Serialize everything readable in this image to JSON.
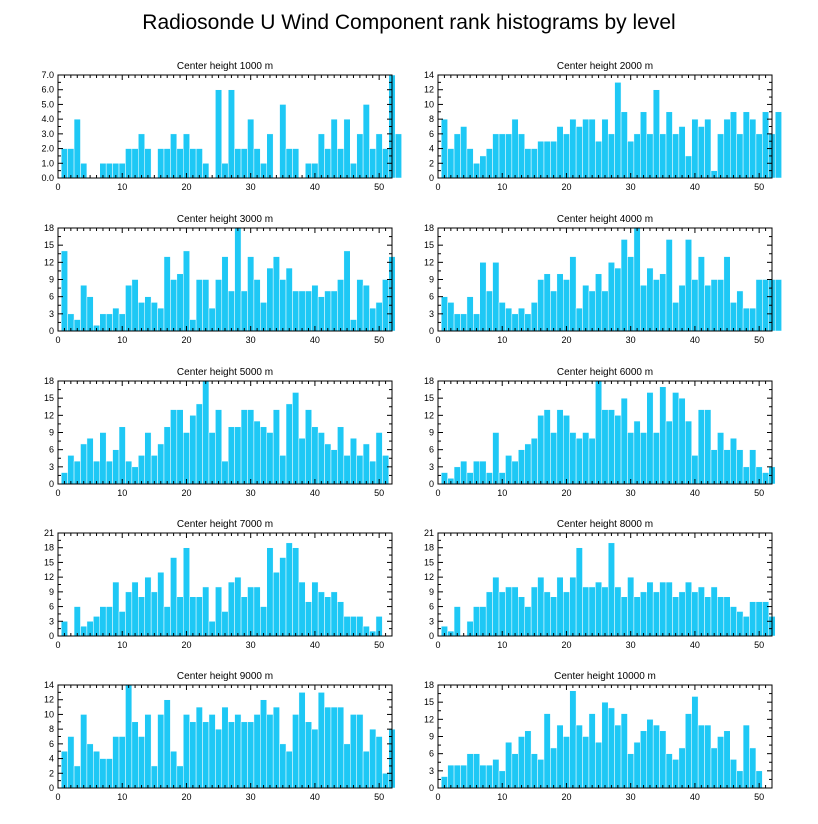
{
  "chart_data": {
    "type": "bar",
    "title": "Radiosonde U Wind Component rank histograms by level",
    "xlim": [
      0,
      52
    ],
    "xticks": [
      0,
      10,
      20,
      30,
      40,
      50
    ],
    "bar_color": "#1ec8f5",
    "panels": [
      {
        "title": "Center height 1000 m",
        "ylim": [
          0,
          7
        ],
        "yticks": [
          0,
          1,
          2,
          3,
          4,
          5,
          6,
          7
        ],
        "ytick_labels": [
          "0.0",
          "1.0",
          "2.0",
          "3.0",
          "4.0",
          "5.0",
          "6.0",
          "7.0"
        ],
        "values": [
          2,
          2,
          4,
          1,
          0,
          0,
          1,
          1,
          1,
          1,
          2,
          2,
          3,
          2,
          0,
          2,
          2,
          3,
          2,
          3,
          2,
          2,
          1,
          0,
          6,
          1,
          6,
          2,
          2,
          4,
          2,
          1,
          3,
          0,
          5,
          2,
          2,
          0,
          1,
          1,
          3,
          2,
          4,
          2,
          4,
          1,
          3,
          5,
          2,
          3,
          2,
          7,
          3
        ]
      },
      {
        "title": "Center height 2000 m",
        "ylim": [
          0,
          14
        ],
        "yticks": [
          0,
          2,
          4,
          6,
          8,
          10,
          12,
          14
        ],
        "ytick_labels": [
          "0",
          "2",
          "4",
          "6",
          "8",
          "10",
          "12",
          "14"
        ],
        "values": [
          8,
          4,
          6,
          7,
          4,
          2,
          3,
          4,
          6,
          6,
          6,
          8,
          6,
          4,
          4,
          5,
          5,
          5,
          7,
          6,
          8,
          7,
          8,
          8,
          5,
          8,
          6,
          13,
          9,
          5,
          6,
          9,
          6,
          12,
          6,
          9,
          6,
          7,
          3,
          8,
          7,
          8,
          1,
          6,
          8,
          9,
          6,
          9,
          8,
          6,
          9,
          6,
          9
        ]
      },
      {
        "title": "Center height 3000 m",
        "ylim": [
          0,
          18
        ],
        "yticks": [
          0,
          3,
          6,
          9,
          12,
          15,
          18
        ],
        "ytick_labels": [
          "0",
          "3",
          "6",
          "9",
          "12",
          "15",
          "18"
        ],
        "values": [
          14,
          3,
          2,
          8,
          6,
          1,
          3,
          3,
          4,
          3,
          8,
          9,
          5,
          6,
          5,
          4,
          13,
          9,
          10,
          14,
          2,
          9,
          9,
          4,
          9,
          13,
          7,
          18,
          7,
          13,
          9,
          5,
          11,
          13,
          9,
          11,
          7,
          7,
          7,
          8,
          6,
          7,
          7,
          9,
          14,
          2,
          9,
          8,
          4,
          5,
          9,
          13
        ]
      },
      {
        "title": "Center height 4000 m",
        "ylim": [
          0,
          18
        ],
        "yticks": [
          0,
          3,
          6,
          9,
          12,
          15,
          18
        ],
        "ytick_labels": [
          "0",
          "3",
          "6",
          "9",
          "12",
          "15",
          "18"
        ],
        "values": [
          6,
          5,
          3,
          3,
          6,
          3,
          12,
          7,
          12,
          5,
          4,
          3,
          4,
          3,
          5,
          9,
          10,
          7,
          10,
          9,
          13,
          4,
          8,
          7,
          10,
          7,
          12,
          11,
          16,
          13,
          18,
          8,
          11,
          9,
          10,
          16,
          5,
          8,
          16,
          9,
          13,
          8,
          9,
          9,
          13,
          5,
          7,
          4,
          4,
          9,
          9,
          9,
          9
        ]
      },
      {
        "title": "Center height 5000 m",
        "ylim": [
          0,
          18
        ],
        "yticks": [
          0,
          3,
          6,
          9,
          12,
          15,
          18
        ],
        "ytick_labels": [
          "0",
          "3",
          "6",
          "9",
          "12",
          "15",
          "18"
        ],
        "values": [
          2,
          5,
          4,
          7,
          8,
          4,
          9,
          4,
          6,
          10,
          4,
          3,
          5,
          9,
          5,
          7,
          10,
          13,
          13,
          9,
          12,
          14,
          18,
          9,
          13,
          4,
          10,
          10,
          13,
          13,
          11,
          10,
          9,
          13,
          5,
          14,
          16,
          8,
          13,
          10,
          9,
          7,
          6,
          10,
          5,
          8,
          5,
          7,
          4,
          9,
          5
        ]
      },
      {
        "title": "Center height 6000 m",
        "ylim": [
          0,
          18
        ],
        "yticks": [
          0,
          3,
          6,
          9,
          12,
          15,
          18
        ],
        "ytick_labels": [
          "0",
          "3",
          "6",
          "9",
          "12",
          "15",
          "18"
        ],
        "values": [
          2,
          1,
          3,
          4,
          2,
          4,
          4,
          2,
          9,
          2,
          5,
          4,
          6,
          7,
          8,
          12,
          13,
          9,
          13,
          12,
          9,
          8,
          9,
          8,
          18,
          13,
          13,
          12,
          15,
          9,
          11,
          9,
          16,
          9,
          17,
          11,
          16,
          15,
          11,
          5,
          13,
          13,
          6,
          9,
          6,
          8,
          6,
          3,
          6,
          3,
          2,
          3
        ]
      },
      {
        "title": "Center height 7000 m",
        "ylim": [
          0,
          21
        ],
        "yticks": [
          0,
          3,
          6,
          9,
          12,
          15,
          18,
          21
        ],
        "ytick_labels": [
          "0",
          "3",
          "6",
          "9",
          "12",
          "15",
          "18",
          "21"
        ],
        "values": [
          3,
          0,
          6,
          2,
          3,
          4,
          6,
          6,
          11,
          5,
          9,
          11,
          8,
          12,
          9,
          13,
          6,
          16,
          8,
          18,
          8,
          8,
          10,
          3,
          10,
          5,
          11,
          12,
          8,
          10,
          10,
          6,
          18,
          13,
          16,
          19,
          18,
          11,
          7,
          11,
          9,
          8,
          9,
          7,
          4,
          4,
          4,
          2,
          1,
          4
        ]
      },
      {
        "title": "Center height 8000 m",
        "ylim": [
          0,
          21
        ],
        "yticks": [
          0,
          3,
          6,
          9,
          12,
          15,
          18,
          21
        ],
        "ytick_labels": [
          "0",
          "3",
          "6",
          "9",
          "12",
          "15",
          "18",
          "21"
        ],
        "values": [
          2,
          1,
          6,
          0,
          3,
          6,
          6,
          9,
          12,
          9,
          10,
          10,
          8,
          6,
          10,
          12,
          9,
          8,
          12,
          9,
          12,
          18,
          10,
          10,
          11,
          10,
          19,
          10,
          8,
          12,
          8,
          9,
          11,
          9,
          11,
          11,
          8,
          9,
          11,
          9,
          10,
          8,
          10,
          8,
          8,
          6,
          5,
          4,
          7,
          7,
          7,
          4
        ]
      },
      {
        "title": "Center height 9000 m",
        "ylim": [
          0,
          14
        ],
        "yticks": [
          0,
          2,
          4,
          6,
          8,
          10,
          12,
          14
        ],
        "ytick_labels": [
          "0",
          "2",
          "4",
          "6",
          "8",
          "10",
          "12",
          "14"
        ],
        "values": [
          5,
          7,
          3,
          10,
          6,
          5,
          4,
          4,
          7,
          7,
          14,
          9,
          7,
          10,
          3,
          10,
          12,
          5,
          3,
          10,
          9,
          11,
          9,
          10,
          8,
          11,
          9,
          10,
          9,
          9,
          10,
          12,
          10,
          11,
          6,
          5,
          10,
          13,
          9,
          8,
          13,
          11,
          11,
          11,
          6,
          10,
          10,
          5,
          8,
          7,
          2,
          8
        ]
      },
      {
        "title": "Center height 10000 m",
        "ylim": [
          0,
          18
        ],
        "yticks": [
          0,
          3,
          6,
          9,
          12,
          15,
          18
        ],
        "ytick_labels": [
          "0",
          "3",
          "6",
          "9",
          "12",
          "15",
          "18"
        ],
        "values": [
          2,
          4,
          4,
          4,
          6,
          6,
          4,
          4,
          5,
          3,
          8,
          6,
          9,
          10,
          6,
          5,
          13,
          7,
          11,
          9,
          17,
          11,
          9,
          13,
          8,
          15,
          14,
          11,
          13,
          6,
          8,
          10,
          12,
          11,
          10,
          6,
          5,
          7,
          13,
          16,
          11,
          11,
          7,
          9,
          10,
          5,
          3,
          11,
          7,
          3
        ]
      }
    ]
  }
}
